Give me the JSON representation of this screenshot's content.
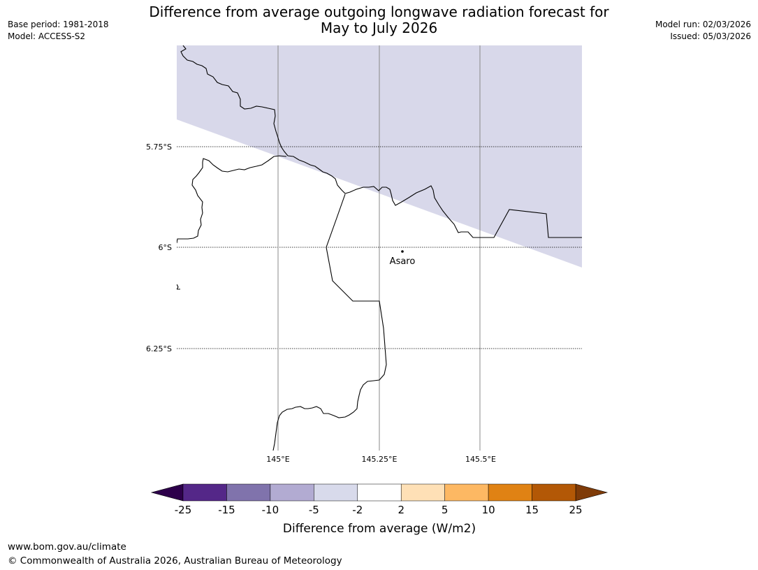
{
  "header": {
    "title_line1": "Difference from average outgoing longwave radiation forecast for",
    "title_line2": "May to July 2026",
    "base_period": "Base period: 1981-2018",
    "model": "Model: ACCESS-S2",
    "model_run": "Model run: 02/03/2026",
    "issued": "Issued: 05/03/2026"
  },
  "map": {
    "lat_labels": [
      "5.75°S",
      "6°S",
      "6.25°S"
    ],
    "lon_labels": [
      "145°E",
      "145.25°E",
      "145.5°E"
    ],
    "place_label": "Asaro",
    "shaded_category": "-5 to -2",
    "shade_color": "#d8d8ea",
    "coast_color": "#000000"
  },
  "colorbar": {
    "title": "Difference from average (W/m2)",
    "tick_labels": [
      "-25",
      "-15",
      "-10",
      "-5",
      "-2",
      "2",
      "5",
      "10",
      "15",
      "25"
    ],
    "low_extend_color": "#2d004b",
    "high_extend_color": "#7f3b08",
    "colors": [
      "#542788",
      "#8073ac",
      "#b2abd2",
      "#d8daeb",
      "#ffffff",
      "#fee0b6",
      "#fdb863",
      "#e08214",
      "#b35806"
    ]
  },
  "footer": {
    "url": "www.bom.gov.au/climate",
    "copyright": "© Commonwealth of Australia 2026, Australian Bureau of Meteorology"
  }
}
